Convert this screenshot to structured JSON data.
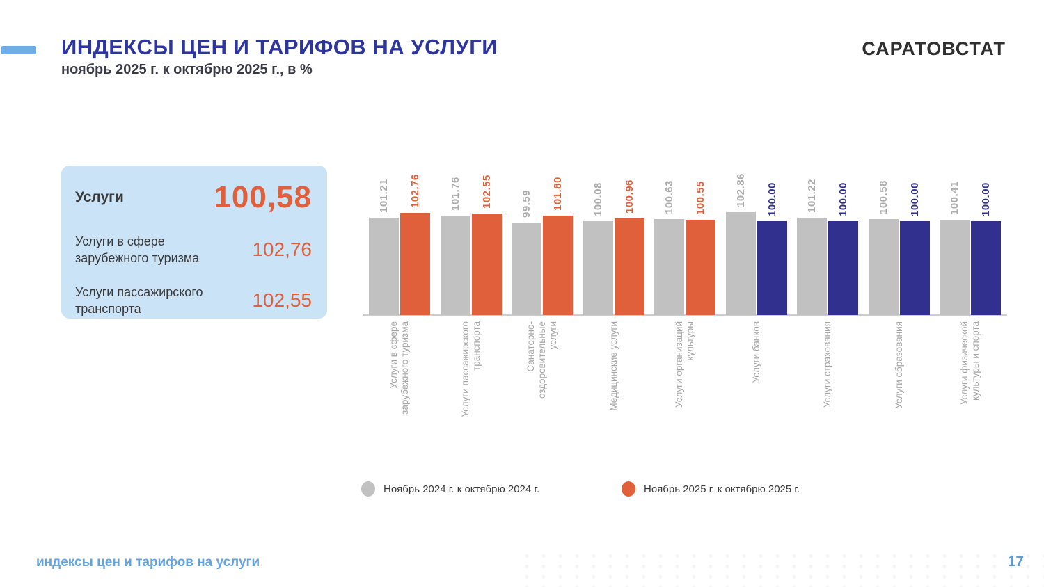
{
  "header": {
    "title": "ИНДЕКСЫ ЦЕН И ТАРИФОВ НА УСЛУГИ",
    "subtitle": "ноябрь 2025 г. к октябрю 2025 г., в %",
    "logo": "САРАТОВСТАТ",
    "accent_color": "#70AEEA",
    "title_color": "#2D359E"
  },
  "summary_card": {
    "bg_color": "#CBE3F7",
    "value_color": "#E0603C",
    "title": "Услуги",
    "title_value": "100,58",
    "rows": [
      {
        "label": "Услуги в сфере\nзарубежного туризма",
        "value": "102,76"
      },
      {
        "label": "Услуги пассажирского\nтранспорта",
        "value": "102,55"
      }
    ]
  },
  "chart_data": {
    "type": "bar",
    "title": "",
    "xlabel": "",
    "ylabel": "",
    "grid": false,
    "legend_position": "bottom",
    "axis_min_visual": 70,
    "value_label_format": "0.00",
    "categories": [
      "Услуги в сфере\nзарубежного туризма",
      "Услуги пассажирского\nтранспорта",
      "Санаторно-\nоздоровительные\nуслуги",
      "Медицинские услуги",
      "Услуги организаций\nкультуры",
      "Услуги банков",
      "Услуги страхования",
      "Услуги образования",
      "Услуги физической\nкультуры и спорта"
    ],
    "series": [
      {
        "name": "Ноябрь 2024 г. к октябрю 2024 г.",
        "color": "#C1C1C1",
        "label_color": "#ABABAB",
        "values": [
          101.21,
          101.76,
          99.59,
          100.08,
          100.63,
          102.86,
          101.22,
          100.58,
          100.41
        ]
      },
      {
        "name": "Ноябрь 2025 г. к октябрю 2025 г.",
        "color": "#E0603C",
        "alt_color": "#31308F",
        "bar_colors": [
          "#E0603C",
          "#E0603C",
          "#E0603C",
          "#E0603C",
          "#E0603C",
          "#31308F",
          "#31308F",
          "#31308F",
          "#31308F"
        ],
        "values": [
          102.76,
          102.55,
          101.8,
          100.96,
          100.55,
          100.0,
          100.0,
          100.0,
          100.0
        ]
      }
    ]
  },
  "legend": {
    "items": [
      {
        "label": "Ноябрь 2024 г. к октябрю 2024 г.",
        "color": "#C1C1C1"
      },
      {
        "label": "Ноябрь 2025 г. к октябрю 2025 г.",
        "color": "#E0603C"
      }
    ]
  },
  "footer": {
    "title": "индексы цен и тарифов на услуги",
    "page": "17"
  }
}
